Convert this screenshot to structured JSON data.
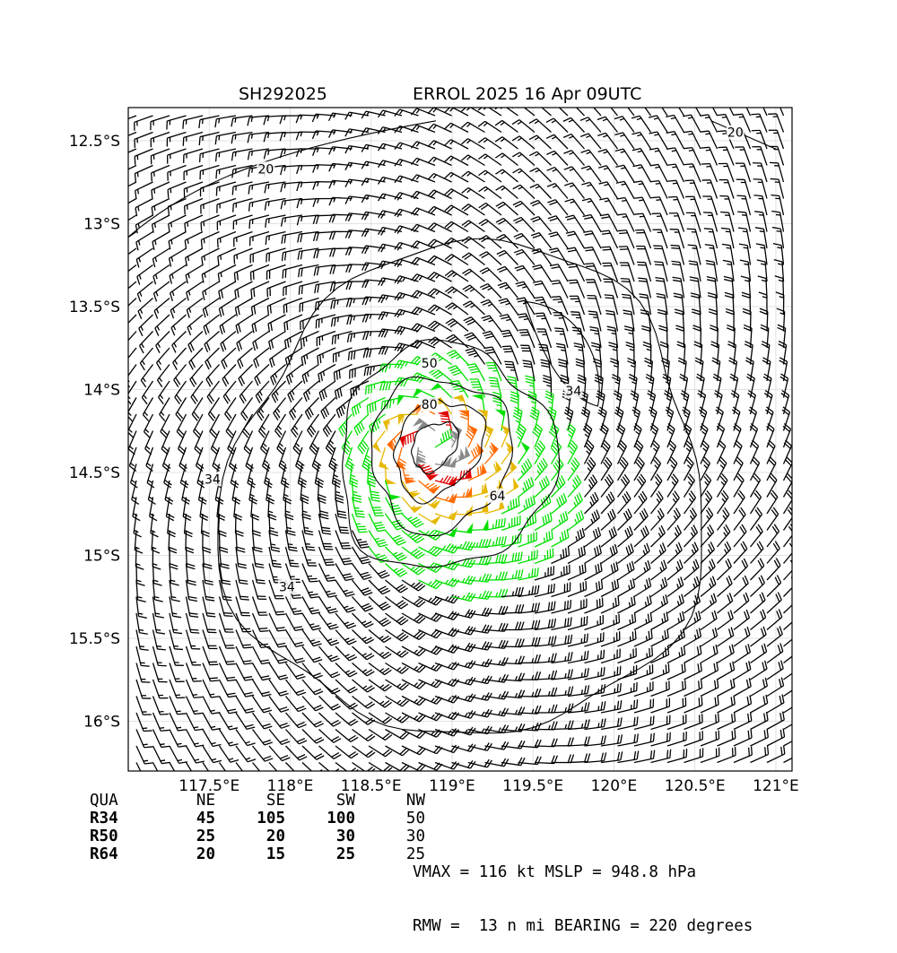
{
  "title": {
    "storm_id": "SH292025",
    "storm_name_time": "ERROL 2025 16 Apr 09UTC"
  },
  "map": {
    "lon_range": [
      117.0,
      121.1
    ],
    "lat_range": [
      -16.3,
      -12.3
    ],
    "lon_ticks": [
      117.5,
      118.0,
      118.5,
      119.0,
      119.5,
      120.0,
      120.5,
      121.0
    ],
    "lon_tick_labels": [
      "117.5°E",
      "118°E",
      "118.5°E",
      "119°E",
      "119.5°E",
      "120°E",
      "120.5°E",
      "121°E"
    ],
    "lat_ticks": [
      -12.5,
      -13.0,
      -13.5,
      -14.0,
      -14.5,
      -15.0,
      -15.5,
      -16.0
    ],
    "lat_tick_labels": [
      "12.5°S",
      "13°S",
      "13.5°S",
      "14°S",
      "14.5°S",
      "15°S",
      "15.5°S",
      "16°S"
    ],
    "grid": true,
    "center": {
      "lon": 118.87,
      "lat": -14.33
    },
    "wind_colors": {
      "below_34": "#000000",
      "34_to_50": "#00e000",
      "50_to_64": "#e6b800",
      "64_to_80": "#ff6a00",
      "80_to_100": "#e00000",
      "above_100": "#888888"
    },
    "contour_labels": [
      {
        "text": "20",
        "lon": 117.85,
        "lat": -12.68
      },
      {
        "text": "20",
        "lon": 120.75,
        "lat": -12.46
      },
      {
        "text": "34",
        "lon": 119.75,
        "lat": -14.02
      },
      {
        "text": "34",
        "lon": 117.52,
        "lat": -14.55
      },
      {
        "text": "34",
        "lon": 117.98,
        "lat": -15.2
      },
      {
        "text": "50",
        "lon": 118.86,
        "lat": -13.85
      },
      {
        "text": "80",
        "lon": 118.86,
        "lat": -14.1
      },
      {
        "text": "64",
        "lon": 119.28,
        "lat": -14.65
      }
    ]
  },
  "quadrants": {
    "header": [
      "QUA",
      "NE",
      "SE",
      "SW",
      "NW"
    ],
    "rows": [
      {
        "label": "R34",
        "values": [
          "45",
          "105",
          "100",
          "50"
        ]
      },
      {
        "label": "R50",
        "values": [
          "25",
          "20",
          "30",
          "30"
        ]
      },
      {
        "label": "R64",
        "values": [
          "20",
          "15",
          "25",
          "25"
        ]
      }
    ]
  },
  "info": {
    "line1": "VMAX = 116 kt MSLP = 948.8 hPa",
    "line2": "RMW =  13 n mi BEARING = 220 degrees"
  }
}
